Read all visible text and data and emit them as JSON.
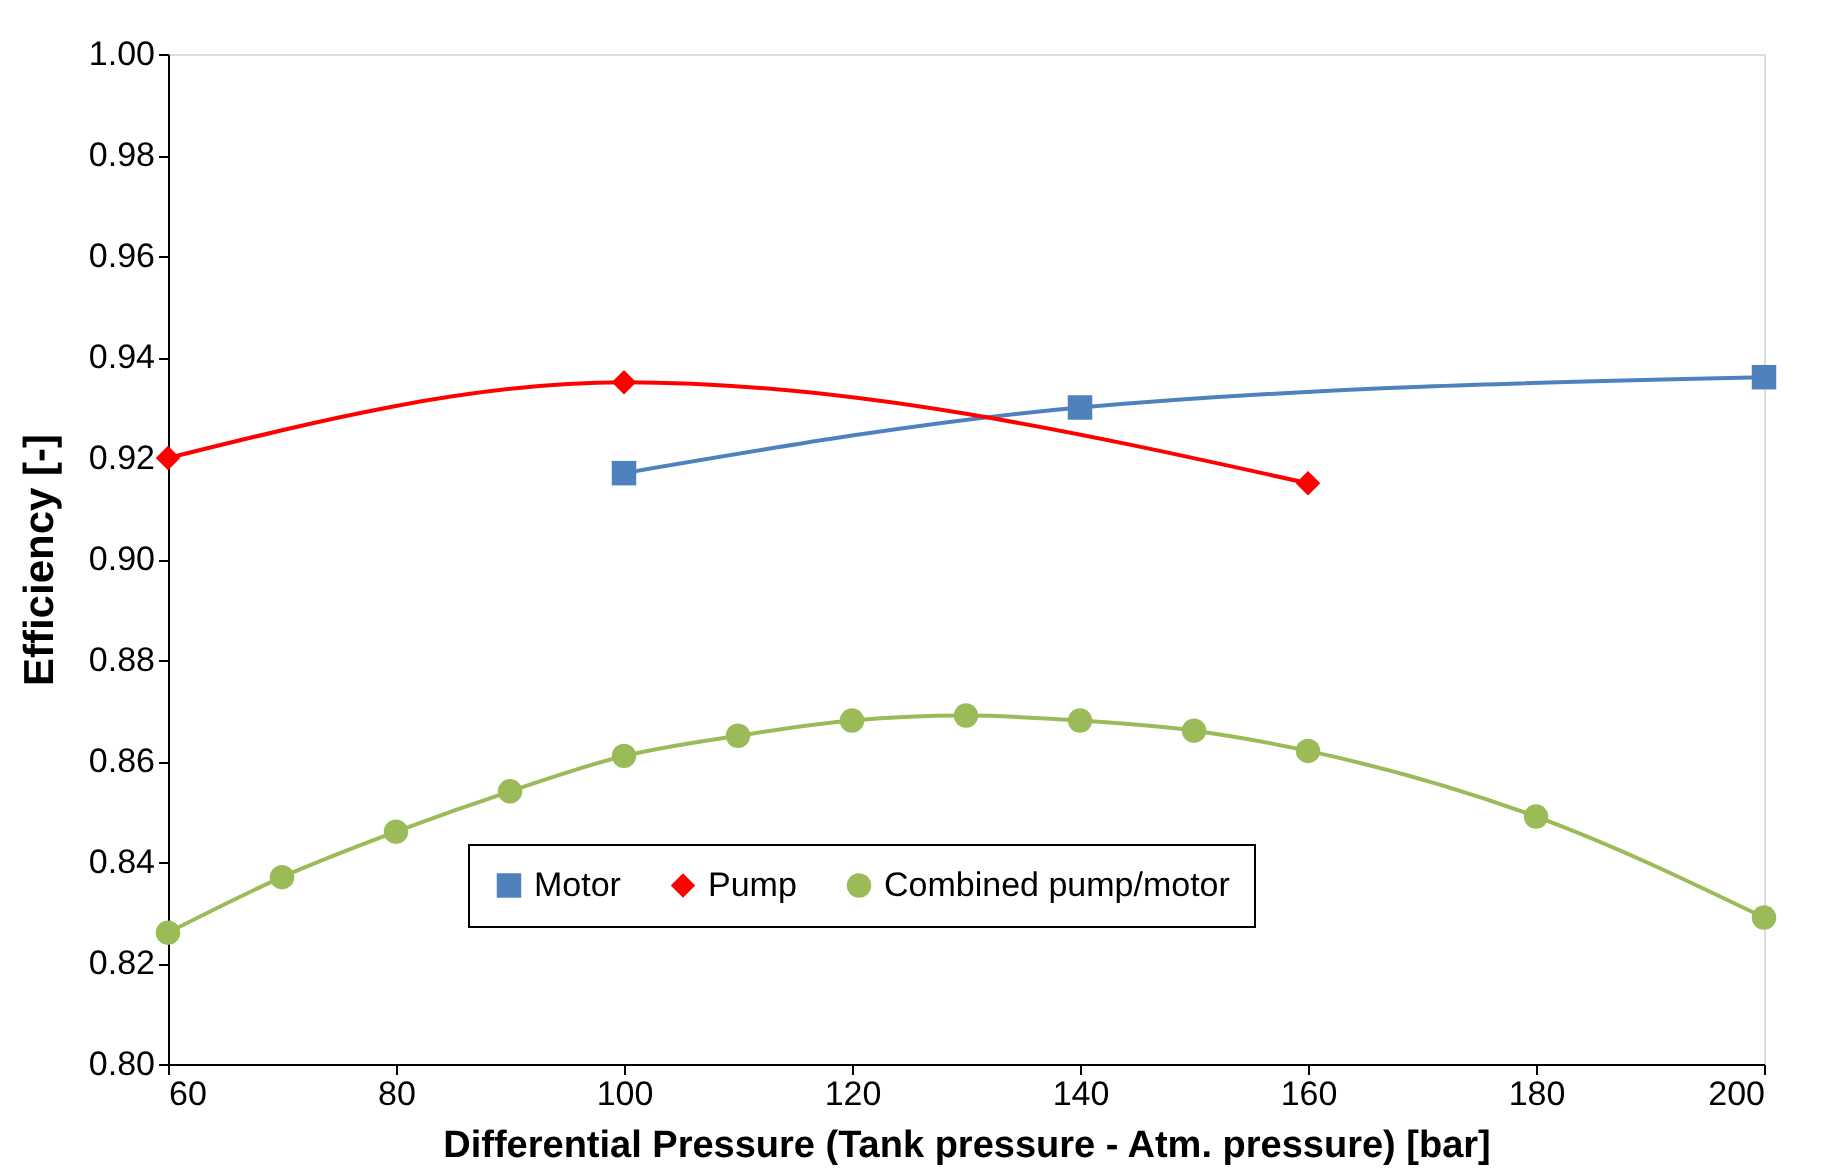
{
  "chart_data": {
    "type": "line",
    "xlabel": "Differential Pressure (Tank pressure - Atm. pressure) [bar]",
    "ylabel": "Efficiency [-]",
    "xlim": [
      60,
      200
    ],
    "xticks": [
      60,
      80,
      100,
      120,
      140,
      160,
      180,
      200
    ],
    "ylim": [
      0.8,
      1.0
    ],
    "yticks": [
      {
        "value": 0.8,
        "label": "0.80"
      },
      {
        "value": 0.82,
        "label": "0.82"
      },
      {
        "value": 0.84,
        "label": "0.84"
      },
      {
        "value": 0.86,
        "label": "0.86"
      },
      {
        "value": 0.88,
        "label": "0.88"
      },
      {
        "value": 0.9,
        "label": "0.90"
      },
      {
        "value": 0.92,
        "label": "0.92"
      },
      {
        "value": 0.94,
        "label": "0.94"
      },
      {
        "value": 0.96,
        "label": "0.96"
      },
      {
        "value": 0.98,
        "label": "0.98"
      },
      {
        "value": 1.0,
        "label": "1.00"
      }
    ],
    "grid": false,
    "legend": "bottom",
    "line_style": "solid",
    "series": [
      {
        "name": "Motor",
        "color": "#4f81bd",
        "marker": "square",
        "x": [
          100,
          140,
          200
        ],
        "values": [
          0.917,
          0.93,
          0.936
        ]
      },
      {
        "name": "Pump",
        "color": "#ff0000",
        "marker": "diamond",
        "x": [
          60,
          100,
          160
        ],
        "values": [
          0.92,
          0.935,
          0.915
        ]
      },
      {
        "name": "Combined pump/motor",
        "color": "#9bbb59",
        "marker": "circle",
        "x": [
          60,
          70,
          80,
          90,
          100,
          110,
          120,
          130,
          140,
          150,
          160,
          180,
          200
        ],
        "values": [
          0.826,
          0.837,
          0.846,
          0.854,
          0.861,
          0.865,
          0.868,
          0.869,
          0.868,
          0.866,
          0.862,
          0.849,
          0.829
        ]
      }
    ]
  }
}
